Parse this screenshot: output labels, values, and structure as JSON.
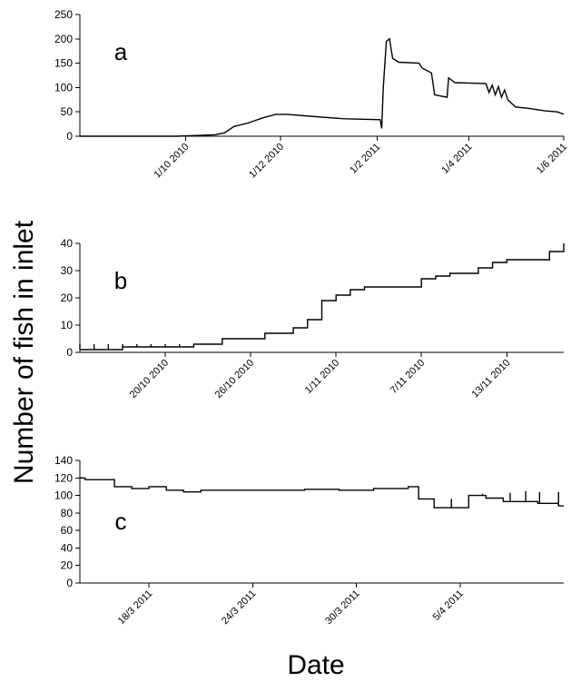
{
  "figure": {
    "ylabel": "Number of fish in inlet",
    "xlabel": "Date"
  },
  "chart_data": [
    {
      "type": "line",
      "panel": "a",
      "ylim": [
        0,
        250
      ],
      "yticks": [
        0,
        50,
        100,
        150,
        200,
        250
      ],
      "xlim": [
        "2010-07-25",
        "2011-06-01"
      ],
      "xticks": [
        {
          "date": "2010-10-01",
          "label": "1/10 2010"
        },
        {
          "date": "2010-12-01",
          "label": "1/12 2010"
        },
        {
          "date": "2011-02-01",
          "label": "1/2 2011"
        },
        {
          "date": "2011-04-01",
          "label": "1/4 2011"
        },
        {
          "date": "2011-06-01",
          "label": "1/6 2011"
        }
      ],
      "grid": false,
      "points": [
        [
          "2010-07-25",
          0
        ],
        [
          "2010-09-25",
          0
        ],
        [
          "2010-10-20",
          3
        ],
        [
          "2010-10-26",
          7
        ],
        [
          "2010-11-01",
          20
        ],
        [
          "2010-11-10",
          27
        ],
        [
          "2010-11-20",
          38
        ],
        [
          "2010-11-28",
          45
        ],
        [
          "2010-12-05",
          45
        ],
        [
          "2010-12-20",
          41
        ],
        [
          "2011-01-10",
          36
        ],
        [
          "2011-02-03",
          34
        ],
        [
          "2011-02-04",
          16
        ],
        [
          "2011-02-05",
          100
        ],
        [
          "2011-02-07",
          195
        ],
        [
          "2011-02-09",
          200
        ],
        [
          "2011-02-11",
          160
        ],
        [
          "2011-02-15",
          152
        ],
        [
          "2011-02-28",
          150
        ],
        [
          "2011-03-02",
          140
        ],
        [
          "2011-03-08",
          130
        ],
        [
          "2011-03-10",
          85
        ],
        [
          "2011-03-18",
          80
        ],
        [
          "2011-03-19",
          120
        ],
        [
          "2011-03-23",
          110
        ],
        [
          "2011-04-12",
          108
        ],
        [
          "2011-04-14",
          90
        ],
        [
          "2011-04-16",
          105
        ],
        [
          "2011-04-18",
          85
        ],
        [
          "2011-04-20",
          102
        ],
        [
          "2011-04-22",
          80
        ],
        [
          "2011-04-24",
          95
        ],
        [
          "2011-04-26",
          75
        ],
        [
          "2011-05-01",
          60
        ],
        [
          "2011-05-10",
          57
        ],
        [
          "2011-05-20",
          52
        ],
        [
          "2011-05-28",
          50
        ],
        [
          "2011-06-01",
          45
        ]
      ]
    },
    {
      "type": "line",
      "panel": "b",
      "ylim": [
        0,
        40
      ],
      "yticks": [
        0,
        10,
        20,
        30,
        40
      ],
      "xlim": [
        "2010-10-14",
        "2010-11-17"
      ],
      "xticks": [
        {
          "date": "2010-10-20",
          "label": "20/10 2010"
        },
        {
          "date": "2010-10-26",
          "label": "26/10 2010"
        },
        {
          "date": "2010-11-01",
          "label": "1/11 2010"
        },
        {
          "date": "2010-11-07",
          "label": "7/11 2010"
        },
        {
          "date": "2010-11-13",
          "label": "13/11 2010"
        }
      ],
      "grid": false,
      "steps": [
        [
          "2010-10-14",
          1
        ],
        [
          "2010-10-17",
          2
        ],
        [
          "2010-10-22",
          3
        ],
        [
          "2010-10-24",
          5
        ],
        [
          "2010-10-27",
          7
        ],
        [
          "2010-10-29",
          9
        ],
        [
          "2010-10-30",
          12
        ],
        [
          "2010-10-31",
          19
        ],
        [
          "2010-11-01",
          21
        ],
        [
          "2010-11-02",
          23
        ],
        [
          "2010-11-03",
          24
        ],
        [
          "2010-11-07",
          27
        ],
        [
          "2010-11-08",
          28
        ],
        [
          "2010-11-09",
          29
        ],
        [
          "2010-11-11",
          31
        ],
        [
          "2010-11-12",
          33
        ],
        [
          "2010-11-13",
          34
        ],
        [
          "2010-11-16",
          37
        ],
        [
          "2010-11-17",
          40
        ]
      ],
      "spikes": [
        [
          "2010-10-14",
          3
        ],
        [
          "2010-10-15",
          3
        ],
        [
          "2010-10-16",
          3
        ],
        [
          "2010-10-17",
          3
        ],
        [
          "2010-10-18",
          3
        ],
        [
          "2010-10-19",
          3
        ],
        [
          "2010-10-20",
          3
        ],
        [
          "2010-10-21",
          3
        ]
      ]
    },
    {
      "type": "line",
      "panel": "c",
      "ylim": [
        0,
        140
      ],
      "yticks": [
        0,
        20,
        40,
        60,
        80,
        100,
        120,
        140
      ],
      "xlim": [
        "2011-03-14",
        "2011-04-11"
      ],
      "xticks": [
        {
          "date": "2011-03-18",
          "label": "18/3 2011"
        },
        {
          "date": "2011-03-24",
          "label": "24/3 2011"
        },
        {
          "date": "2011-03-30",
          "label": "30/3 2011"
        },
        {
          "date": "2011-04-05",
          "label": "5/4 2011"
        }
      ],
      "grid": false,
      "steps": [
        [
          "2011-03-14",
          120
        ],
        [
          "2011-03-14.3",
          118
        ],
        [
          "2011-03-16",
          110
        ],
        [
          "2011-03-17",
          108
        ],
        [
          "2011-03-18",
          110
        ],
        [
          "2011-03-19",
          106
        ],
        [
          "2011-03-20",
          104
        ],
        [
          "2011-03-21",
          106
        ],
        [
          "2011-03-27",
          107
        ],
        [
          "2011-03-29",
          106
        ],
        [
          "2011-03-31",
          108
        ],
        [
          "2011-04-02",
          110
        ],
        [
          "2011-04-02.6",
          96
        ],
        [
          "2011-04-03.5",
          86
        ],
        [
          "2011-04-05.5",
          100
        ],
        [
          "2011-04-06.5",
          97
        ],
        [
          "2011-04-07.5",
          93
        ],
        [
          "2011-04-09.5",
          91
        ],
        [
          "2011-04-10.7",
          88
        ]
      ],
      "spikes": [
        [
          "2011-04-04.5",
          96
        ],
        [
          "2011-04-06.3",
          102
        ],
        [
          "2011-04-07.9",
          103
        ],
        [
          "2011-04-08.8",
          105
        ],
        [
          "2011-04-09.6",
          104
        ],
        [
          "2011-04-10.7",
          104
        ]
      ]
    }
  ]
}
